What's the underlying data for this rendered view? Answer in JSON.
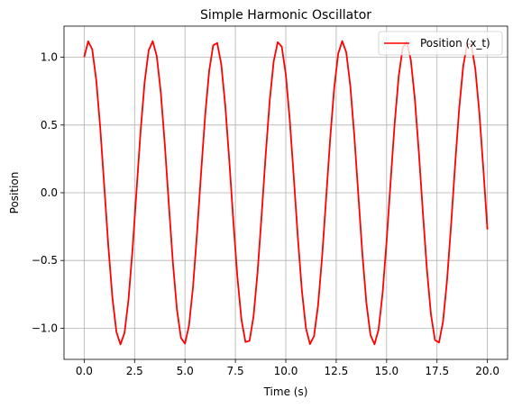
{
  "chart_data": {
    "type": "line",
    "title": "Simple Harmonic Oscillator",
    "xlabel": "Time (s)",
    "ylabel": "Position",
    "xlim": [
      -1.0,
      21.0
    ],
    "ylim": [
      -1.23,
      1.23
    ],
    "xticks": [
      0.0,
      2.5,
      5.0,
      7.5,
      10.0,
      12.5,
      15.0,
      17.5,
      20.0
    ],
    "xtick_labels": [
      "0.0",
      "2.5",
      "5.0",
      "7.5",
      "10.0",
      "12.5",
      "15.0",
      "17.5",
      "20.0"
    ],
    "yticks": [
      -1.0,
      -0.5,
      0.0,
      0.5,
      1.0
    ],
    "ytick_labels": [
      "−1.0",
      "−0.5",
      "0.0",
      "0.5",
      "1.0"
    ],
    "grid": true,
    "legend_position": "top-right",
    "series": [
      {
        "name": "Position (x_t)",
        "color": "#ff0000",
        "model": {
          "amplitude": 1.12,
          "angular_frequency": 1.999,
          "phase": -0.465,
          "t_start": 0.0,
          "t_end": 20.0,
          "step": 0.2
        }
      }
    ]
  }
}
